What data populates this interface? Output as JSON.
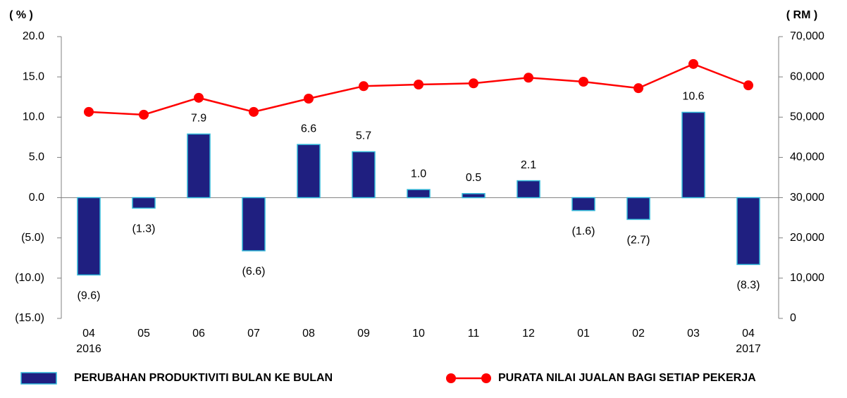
{
  "chart_data": {
    "type": "bar_line",
    "y_axis_label": "( % )",
    "y2_axis_label": "( RM )",
    "categories": [
      [
        "04",
        "2016"
      ],
      [
        "05"
      ],
      [
        "06"
      ],
      [
        "07"
      ],
      [
        "08"
      ],
      [
        "09"
      ],
      [
        "10"
      ],
      [
        "11"
      ],
      [
        "12"
      ],
      [
        "01"
      ],
      [
        "02"
      ],
      [
        "03"
      ],
      [
        "04",
        "2017"
      ]
    ],
    "series": [
      {
        "name": "PERUBAHAN PRODUKTIVITI BULAN KE BULAN",
        "type": "bar",
        "axis": "y",
        "color": "#1f1f80",
        "edge_color": "#30b8d8",
        "values": [
          -9.6,
          -1.3,
          7.9,
          -6.6,
          6.6,
          5.7,
          1.0,
          0.5,
          2.1,
          -1.6,
          -2.7,
          10.6,
          -8.3
        ],
        "value_labels": [
          "(9.6)",
          "(1.3)",
          "7.9",
          "(6.6)",
          "6.6",
          "5.7",
          "1.0",
          "0.5",
          "2.1",
          "(1.6)",
          "(2.7)",
          "10.6",
          "(8.3)"
        ]
      },
      {
        "name": "PURATA NILAI JUALAN BAGI SETIAP PEKERJA",
        "type": "line",
        "axis": "y2",
        "color": "#ff0000",
        "values": [
          51300,
          50600,
          54800,
          51300,
          54600,
          57700,
          58100,
          58400,
          59800,
          58800,
          57200,
          63200,
          57900
        ]
      }
    ],
    "negative_color": "#ff0000",
    "ylim": [
      -15,
      20
    ],
    "yticks": [
      {
        "value": -15,
        "label": "(15.0)"
      },
      {
        "value": -10,
        "label": "(10.0)"
      },
      {
        "value": -5,
        "label": "(5.0)"
      },
      {
        "value": 0,
        "label": "0.0"
      },
      {
        "value": 5,
        "label": "5.0"
      },
      {
        "value": 10,
        "label": "10.0"
      },
      {
        "value": 15,
        "label": "15.0"
      },
      {
        "value": 20,
        "label": "20.0"
      }
    ],
    "y2lim": [
      0,
      70000
    ],
    "y2ticks": [
      0,
      {
        "value": 10000,
        "label": "10,000"
      },
      {
        "value": 20000,
        "label": "20,000"
      },
      {
        "value": 30000,
        "label": "30,000"
      },
      {
        "value": 40000,
        "label": "40,000"
      },
      {
        "value": 50000,
        "label": "50,000"
      },
      {
        "value": 60000,
        "label": "60,000"
      },
      {
        "value": 70000,
        "label": "70,000"
      }
    ],
    "legend": "bottom"
  }
}
